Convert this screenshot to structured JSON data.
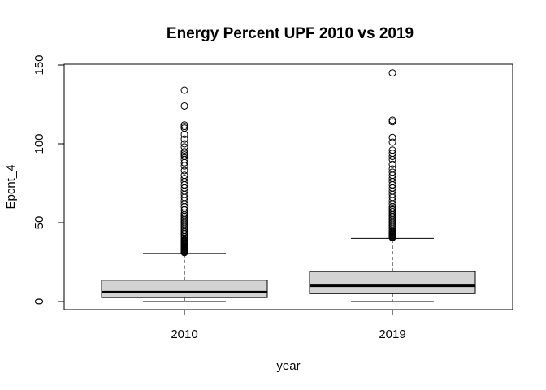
{
  "chart_data": {
    "type": "boxplot",
    "title": "Energy Percent UPF 2010 vs 2019",
    "xlabel": "year",
    "ylabel": "Epcnt_4",
    "ylim": [
      -5,
      150
    ],
    "yticks": [
      "0",
      "50",
      "100",
      "150"
    ],
    "box_fill": "#d3d3d3",
    "categories": [
      "2010",
      "2019"
    ],
    "series": [
      {
        "category": "2010",
        "min": 0,
        "q1": 2.5,
        "median": 6,
        "q3": 13.5,
        "whisker_high": 30.5,
        "outliers": [
          31,
          31.5,
          32,
          32.5,
          33,
          33.5,
          34,
          34.5,
          35,
          35.5,
          36,
          36.5,
          37,
          37.5,
          38,
          38.5,
          39,
          40,
          41,
          42,
          43,
          44,
          45,
          46,
          47,
          48,
          49,
          50,
          51,
          52,
          53,
          54,
          55,
          56,
          58,
          60,
          62,
          64,
          66,
          68,
          70,
          72,
          74,
          76,
          78,
          80,
          83,
          86,
          88,
          90,
          92,
          93,
          94,
          95,
          98,
          100,
          103,
          106,
          110,
          111,
          112,
          124,
          134
        ]
      },
      {
        "category": "2019",
        "min": 0,
        "q1": 5,
        "median": 10,
        "q3": 19,
        "whisker_high": 40,
        "outliers": [
          40.5,
          41,
          41.5,
          42,
          42.5,
          43,
          43.5,
          44,
          44.5,
          45,
          46,
          47,
          48,
          49,
          50,
          51,
          52,
          53,
          54,
          55,
          56,
          57,
          58,
          59,
          60,
          62,
          64,
          66,
          68,
          70,
          72,
          74,
          76,
          78,
          80,
          82,
          84,
          87,
          90,
          92,
          94,
          96,
          101,
          104,
          114,
          115,
          145
        ]
      }
    ]
  }
}
